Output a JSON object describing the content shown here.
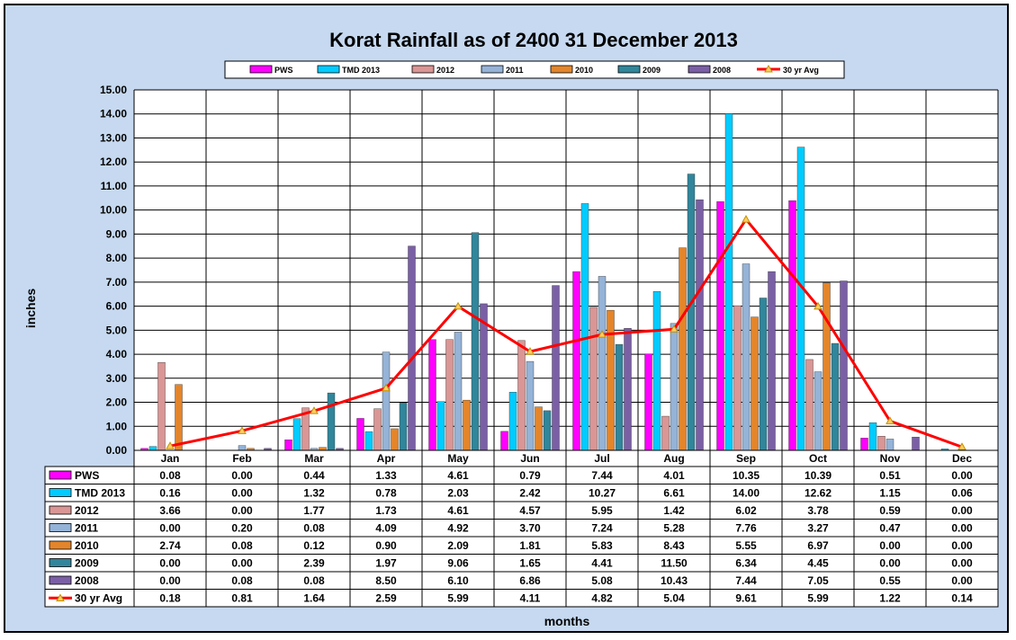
{
  "chart_data": {
    "type": "bar",
    "title": "Korat Rainfall as of 2400 31 December 2013",
    "xlabel": "months",
    "ylabel": "inches",
    "ylim": [
      0,
      15
    ],
    "ytick_step": 1,
    "grid": true,
    "legend_position": "top",
    "categories": [
      "Jan",
      "Feb",
      "Mar",
      "Apr",
      "May",
      "Jun",
      "Jul",
      "Aug",
      "Sep",
      "Oct",
      "Nov",
      "Dec"
    ],
    "series": [
      {
        "name": "PWS",
        "kind": "bar",
        "color": "#ff00ff",
        "values": [
          0.08,
          0.0,
          0.44,
          1.33,
          4.61,
          0.79,
          7.44,
          4.01,
          10.35,
          10.39,
          0.51,
          0.0
        ]
      },
      {
        "name": "TMD 2013",
        "kind": "bar",
        "color": "#00ccff",
        "values": [
          0.16,
          0.0,
          1.32,
          0.78,
          2.03,
          2.42,
          10.27,
          6.61,
          14.0,
          12.62,
          1.15,
          0.06
        ]
      },
      {
        "name": "2012",
        "kind": "bar",
        "color": "#da9694",
        "values": [
          3.66,
          0.0,
          1.77,
          1.73,
          4.61,
          4.57,
          5.95,
          1.42,
          6.02,
          3.78,
          0.59,
          0.0
        ]
      },
      {
        "name": "2011",
        "kind": "bar",
        "color": "#95b3d7",
        "values": [
          0.0,
          0.2,
          0.08,
          4.09,
          4.92,
          3.7,
          7.24,
          5.28,
          7.76,
          3.27,
          0.47,
          0.0
        ]
      },
      {
        "name": "2010",
        "kind": "bar",
        "color": "#e3852b",
        "values": [
          2.74,
          0.08,
          0.12,
          0.9,
          2.09,
          1.81,
          5.83,
          8.43,
          5.55,
          6.97,
          0.0,
          0.0
        ]
      },
      {
        "name": "2009",
        "kind": "bar",
        "color": "#31869b",
        "values": [
          0.0,
          0.0,
          2.39,
          1.97,
          9.06,
          1.65,
          4.41,
          11.5,
          6.34,
          4.45,
          0.0,
          0.0
        ]
      },
      {
        "name": "2008",
        "kind": "bar",
        "color": "#7b5fa6",
        "values": [
          0.0,
          0.08,
          0.08,
          8.5,
          6.1,
          6.86,
          5.08,
          10.43,
          7.44,
          7.05,
          0.55,
          0.0
        ]
      },
      {
        "name": "30 yr Avg",
        "kind": "line",
        "color": "#ff0000",
        "marker_color": "#c09000",
        "values": [
          0.18,
          0.81,
          1.64,
          2.59,
          5.99,
          4.11,
          4.82,
          5.04,
          9.61,
          5.99,
          1.22,
          0.14
        ]
      }
    ]
  }
}
